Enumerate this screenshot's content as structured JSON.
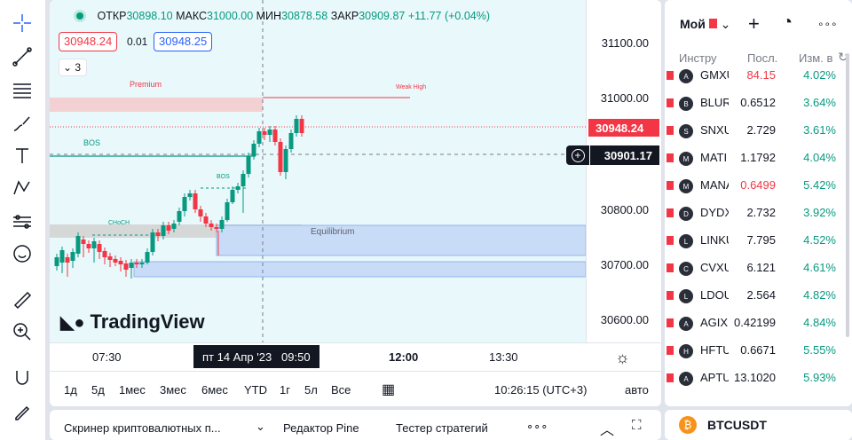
{
  "legend": {
    "open_label": "ОТКР",
    "open": "30898.10",
    "high_label": "МАКС",
    "high": "31000.00",
    "low_label": "МИН",
    "low": "30878.58",
    "close_label": "ЗАКР",
    "close": "30909.87",
    "change": "+11.77 (+0.04%)"
  },
  "order": {
    "sell": "30948.24",
    "spread": "0.01",
    "buy": "30948.25"
  },
  "indicators_count": "3",
  "annotations": {
    "premium": "Premium",
    "weak_high": "Weak High",
    "bos1": "BOS",
    "bos2": "BOS",
    "choch": "CHoCH",
    "equilibrium": "Equilibrium"
  },
  "price_axis": {
    "labels": [
      "31100.00",
      "31000.00",
      "30800.00",
      "30700.00",
      "30600.00"
    ],
    "current": "30948.24",
    "crosshair": "30901.17"
  },
  "time_axis": {
    "labels": [
      "07:30",
      "12:00",
      "13:30"
    ],
    "crosshair_date": "пт 14 Апр '23",
    "crosshair_time": "09:50"
  },
  "logo": "TradingView",
  "ranges": [
    "1д",
    "5д",
    "1мес",
    "3мес",
    "6мес",
    "YTD",
    "1г",
    "5л",
    "Все"
  ],
  "clock": "10:26:15 (UTC+3)",
  "auto": "авто",
  "panels": {
    "screener": "Скринер криптовалютных п...",
    "pine": "Редактор Pine",
    "tester": "Тестер стратегий"
  },
  "watchlist": {
    "title": "Мой",
    "headers": {
      "symbol": "Инстру",
      "last": "Посл.",
      "change": "Изм. в"
    },
    "rows": [
      {
        "sym": "GMXU",
        "last": "84.15",
        "chg": "4.02%",
        "neg": true,
        "icon": "A"
      },
      {
        "sym": "BLUR",
        "last": "0.6512",
        "chg": "3.64%",
        "neg": false,
        "icon": "B"
      },
      {
        "sym": "SNXU",
        "last": "2.729",
        "chg": "3.61%",
        "neg": false,
        "icon": "S"
      },
      {
        "sym": "MATI",
        "last": "1.1792",
        "chg": "4.04%",
        "neg": false,
        "icon": "M"
      },
      {
        "sym": "MANA",
        "last": "0.6499",
        "chg": "5.42%",
        "neg": true,
        "icon": "M"
      },
      {
        "sym": "DYDX",
        "last": "2.732",
        "chg": "3.92%",
        "neg": false,
        "icon": "D"
      },
      {
        "sym": "LINKU",
        "last": "7.795",
        "chg": "4.52%",
        "neg": false,
        "icon": "L"
      },
      {
        "sym": "CVXU",
        "last": "6.121",
        "chg": "4.61%",
        "neg": false,
        "icon": "C"
      },
      {
        "sym": "LDOU",
        "last": "2.564",
        "chg": "4.82%",
        "neg": false,
        "icon": "L"
      },
      {
        "sym": "AGIX",
        "last": "0.42199",
        "chg": "4.84%",
        "neg": false,
        "icon": "A"
      },
      {
        "sym": "HFTU",
        "last": "0.6671",
        "chg": "5.55%",
        "neg": false,
        "icon": "H"
      },
      {
        "sym": "APTU",
        "last": "13.1020",
        "chg": "5.93%",
        "neg": false,
        "icon": "A"
      }
    ]
  },
  "selected_symbol": "BTCUSDT",
  "colors": {
    "up": "#089981",
    "down": "#f23645",
    "accent": "#2962ff"
  }
}
